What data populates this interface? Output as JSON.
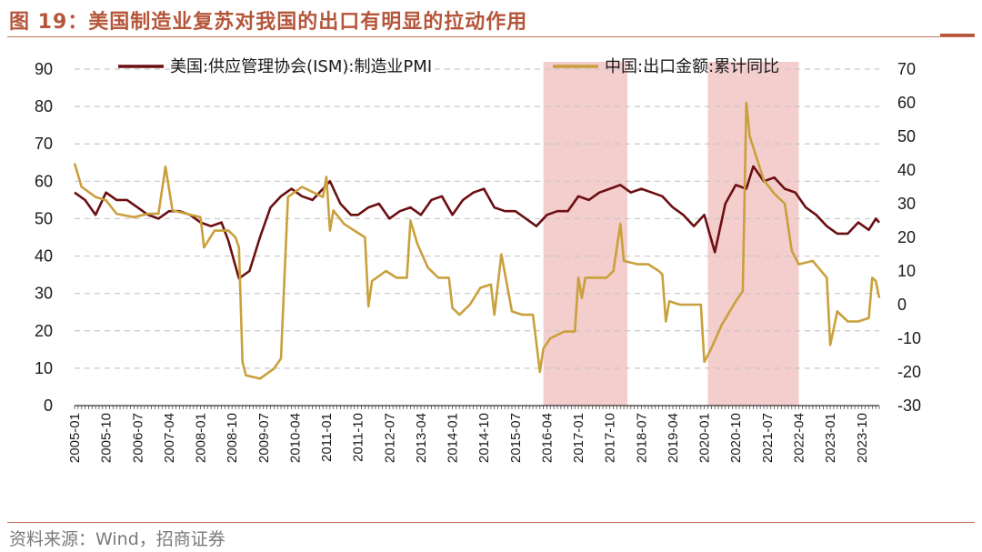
{
  "figure": {
    "title": "图 19：美国制造业复苏对我国的出口有明显的拉动作用",
    "source": "资料来源：Wind，招商证券"
  },
  "colors": {
    "pmi": "#6b0f12",
    "export": "#c9a03c",
    "shade": "#f2c4c4",
    "title": "#b5553a",
    "rule": "#c8735a",
    "grid": "#c8c8c8"
  },
  "chart_data": {
    "type": "line",
    "title": "",
    "y_left": {
      "min": 0,
      "max": 90,
      "ticks": [
        0,
        10,
        20,
        30,
        40,
        50,
        60,
        70,
        80,
        90
      ]
    },
    "y_right": {
      "min": -30,
      "max": 70,
      "ticks": [
        -30,
        -20,
        -10,
        0,
        10,
        20,
        30,
        40,
        50,
        60,
        70
      ]
    },
    "x_tick_labels": [
      "2005-01",
      "2005-10",
      "2006-07",
      "2007-04",
      "2008-01",
      "2008-10",
      "2009-07",
      "2010-04",
      "2011-01",
      "2011-10",
      "2012-07",
      "2013-04",
      "2014-01",
      "2014-10",
      "2015-07",
      "2016-04",
      "2017-01",
      "2017-10",
      "2018-07",
      "2019-04",
      "2020-01",
      "2020-10",
      "2021-07",
      "2022-04",
      "2023-01",
      "2023-10"
    ],
    "x_range": [
      "2005-01",
      "2024-03"
    ],
    "grid": "horizontal dashed",
    "legend": "top",
    "shaded_periods": [
      {
        "start": "2016-03",
        "end": "2018-03"
      },
      {
        "start": "2020-02",
        "end": "2022-04"
      }
    ],
    "series": [
      {
        "name": "美国:供应管理协会(ISM):制造业PMI",
        "axis": "left",
        "points": [
          [
            "2005-01",
            57
          ],
          [
            "2005-04",
            55
          ],
          [
            "2005-07",
            51
          ],
          [
            "2005-10",
            57
          ],
          [
            "2006-01",
            55
          ],
          [
            "2006-04",
            55
          ],
          [
            "2006-07",
            53
          ],
          [
            "2006-10",
            51
          ],
          [
            "2007-01",
            50
          ],
          [
            "2007-04",
            52
          ],
          [
            "2007-07",
            52
          ],
          [
            "2007-10",
            51
          ],
          [
            "2008-01",
            49
          ],
          [
            "2008-04",
            48
          ],
          [
            "2008-07",
            49
          ],
          [
            "2008-09",
            44
          ],
          [
            "2008-12",
            34
          ],
          [
            "2009-03",
            36
          ],
          [
            "2009-06",
            45
          ],
          [
            "2009-09",
            53
          ],
          [
            "2009-12",
            56
          ],
          [
            "2010-03",
            58
          ],
          [
            "2010-06",
            56
          ],
          [
            "2010-09",
            55
          ],
          [
            "2010-12",
            58
          ],
          [
            "2011-02",
            60
          ],
          [
            "2011-05",
            54
          ],
          [
            "2011-08",
            51
          ],
          [
            "2011-10",
            51
          ],
          [
            "2012-01",
            53
          ],
          [
            "2012-04",
            54
          ],
          [
            "2012-07",
            50
          ],
          [
            "2012-10",
            52
          ],
          [
            "2013-01",
            53
          ],
          [
            "2013-04",
            51
          ],
          [
            "2013-07",
            55
          ],
          [
            "2013-10",
            56
          ],
          [
            "2014-01",
            51
          ],
          [
            "2014-04",
            55
          ],
          [
            "2014-07",
            57
          ],
          [
            "2014-10",
            58
          ],
          [
            "2015-01",
            53
          ],
          [
            "2015-04",
            52
          ],
          [
            "2015-07",
            52
          ],
          [
            "2015-10",
            50
          ],
          [
            "2016-01",
            48
          ],
          [
            "2016-04",
            51
          ],
          [
            "2016-07",
            52
          ],
          [
            "2016-10",
            52
          ],
          [
            "2017-01",
            56
          ],
          [
            "2017-04",
            55
          ],
          [
            "2017-07",
            57
          ],
          [
            "2017-10",
            58
          ],
          [
            "2018-01",
            59
          ],
          [
            "2018-04",
            57
          ],
          [
            "2018-07",
            58
          ],
          [
            "2018-10",
            57
          ],
          [
            "2019-01",
            56
          ],
          [
            "2019-04",
            53
          ],
          [
            "2019-07",
            51
          ],
          [
            "2019-10",
            48
          ],
          [
            "2020-01",
            51
          ],
          [
            "2020-04",
            41
          ],
          [
            "2020-07",
            54
          ],
          [
            "2020-10",
            59
          ],
          [
            "2021-01",
            58
          ],
          [
            "2021-03",
            64
          ],
          [
            "2021-06",
            60
          ],
          [
            "2021-09",
            61
          ],
          [
            "2021-12",
            58
          ],
          [
            "2022-03",
            57
          ],
          [
            "2022-06",
            53
          ],
          [
            "2022-09",
            51
          ],
          [
            "2022-12",
            48
          ],
          [
            "2023-03",
            46
          ],
          [
            "2023-06",
            46
          ],
          [
            "2023-09",
            49
          ],
          [
            "2023-12",
            47
          ],
          [
            "2024-02",
            50
          ],
          [
            "2024-03",
            49
          ]
        ]
      },
      {
        "name": "中国:出口金额:累计同比",
        "axis": "right",
        "points": [
          [
            "2005-01",
            42
          ],
          [
            "2005-03",
            35
          ],
          [
            "2005-07",
            32
          ],
          [
            "2005-10",
            31
          ],
          [
            "2006-01",
            27
          ],
          [
            "2006-06",
            26
          ],
          [
            "2006-10",
            27
          ],
          [
            "2007-01",
            27
          ],
          [
            "2007-03",
            41
          ],
          [
            "2007-05",
            28
          ],
          [
            "2007-09",
            27
          ],
          [
            "2008-01",
            26
          ],
          [
            "2008-02",
            17
          ],
          [
            "2008-05",
            22
          ],
          [
            "2008-09",
            22
          ],
          [
            "2008-11",
            20
          ],
          [
            "2008-12",
            17
          ],
          [
            "2009-01",
            -17
          ],
          [
            "2009-02",
            -21
          ],
          [
            "2009-06",
            -22
          ],
          [
            "2009-10",
            -19
          ],
          [
            "2009-12",
            -16
          ],
          [
            "2010-02",
            32
          ],
          [
            "2010-06",
            35
          ],
          [
            "2010-10",
            33
          ],
          [
            "2010-12",
            32
          ],
          [
            "2011-01",
            38
          ],
          [
            "2011-02",
            22
          ],
          [
            "2011-03",
            28
          ],
          [
            "2011-06",
            24
          ],
          [
            "2011-09",
            22
          ],
          [
            "2011-12",
            20
          ],
          [
            "2012-01",
            -0.5
          ],
          [
            "2012-02",
            7
          ],
          [
            "2012-06",
            10
          ],
          [
            "2012-09",
            8
          ],
          [
            "2012-12",
            8
          ],
          [
            "2013-01",
            25
          ],
          [
            "2013-03",
            18
          ],
          [
            "2013-06",
            11
          ],
          [
            "2013-09",
            8
          ],
          [
            "2013-12",
            8
          ],
          [
            "2014-01",
            -1
          ],
          [
            "2014-03",
            -3
          ],
          [
            "2014-06",
            0
          ],
          [
            "2014-09",
            5
          ],
          [
            "2014-12",
            6
          ],
          [
            "2015-01",
            -3
          ],
          [
            "2015-03",
            15
          ],
          [
            "2015-06",
            -2
          ],
          [
            "2015-09",
            -3
          ],
          [
            "2015-12",
            -3
          ],
          [
            "2016-02",
            -20
          ],
          [
            "2016-03",
            -13
          ],
          [
            "2016-05",
            -10
          ],
          [
            "2016-09",
            -8
          ],
          [
            "2016-12",
            -8
          ],
          [
            "2017-01",
            8
          ],
          [
            "2017-02",
            2
          ],
          [
            "2017-03",
            8
          ],
          [
            "2017-06",
            8
          ],
          [
            "2017-09",
            8
          ],
          [
            "2017-11",
            10
          ],
          [
            "2018-01",
            24
          ],
          [
            "2018-02",
            13
          ],
          [
            "2018-06",
            12
          ],
          [
            "2018-09",
            12
          ],
          [
            "2018-12",
            10
          ],
          [
            "2019-01",
            9
          ],
          [
            "2019-02",
            -5
          ],
          [
            "2019-03",
            1
          ],
          [
            "2019-06",
            0
          ],
          [
            "2019-09",
            0
          ],
          [
            "2019-12",
            0
          ],
          [
            "2020-01",
            -17
          ],
          [
            "2020-03",
            -13
          ],
          [
            "2020-06",
            -6
          ],
          [
            "2020-10",
            1
          ],
          [
            "2020-12",
            4
          ],
          [
            "2021-01",
            60
          ],
          [
            "2021-02",
            50
          ],
          [
            "2021-06",
            37
          ],
          [
            "2021-09",
            33
          ],
          [
            "2021-12",
            30
          ],
          [
            "2022-02",
            16
          ],
          [
            "2022-04",
            12
          ],
          [
            "2022-08",
            13
          ],
          [
            "2022-12",
            8
          ],
          [
            "2023-01",
            -12
          ],
          [
            "2023-02",
            -7
          ],
          [
            "2023-03",
            -2
          ],
          [
            "2023-06",
            -5
          ],
          [
            "2023-09",
            -5
          ],
          [
            "2023-12",
            -4
          ],
          [
            "2024-01",
            8
          ],
          [
            "2024-02",
            7
          ],
          [
            "2024-03",
            2
          ]
        ]
      }
    ]
  }
}
